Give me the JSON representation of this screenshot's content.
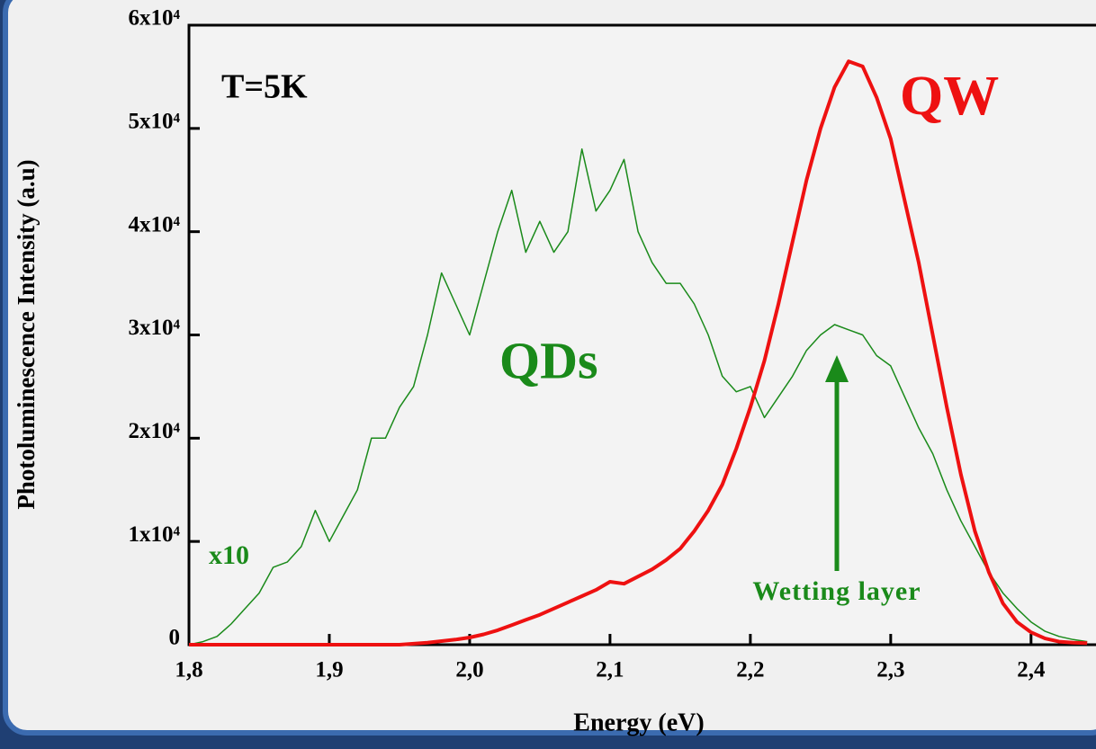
{
  "chart_data": {
    "type": "line",
    "xlabel": "Energy (eV)",
    "ylabel": "Photoluminescence Intensity (a.u)",
    "annotations": [
      "T=5K",
      "QW",
      "QDs",
      "x10",
      "Wetting layer"
    ],
    "x": [
      1.8,
      1.81,
      1.82,
      1.83,
      1.84,
      1.85,
      1.86,
      1.87,
      1.88,
      1.89,
      1.9,
      1.91,
      1.92,
      1.93,
      1.94,
      1.95,
      1.96,
      1.97,
      1.98,
      1.99,
      2.0,
      2.01,
      2.02,
      2.03,
      2.04,
      2.05,
      2.06,
      2.07,
      2.08,
      2.09,
      2.1,
      2.11,
      2.12,
      2.13,
      2.14,
      2.15,
      2.16,
      2.17,
      2.18,
      2.19,
      2.2,
      2.21,
      2.22,
      2.23,
      2.24,
      2.25,
      2.26,
      2.27,
      2.28,
      2.29,
      2.3,
      2.31,
      2.32,
      2.33,
      2.34,
      2.35,
      2.36,
      2.37,
      2.38,
      2.39,
      2.4,
      2.41,
      2.42,
      2.43,
      2.44
    ],
    "series": [
      {
        "name": "QDs",
        "color": "#1a8a1a",
        "width": 1.5,
        "values": [
          0,
          300,
          800,
          2000,
          3500,
          5000,
          7500,
          8000,
          9500,
          13000,
          10000,
          12500,
          15000,
          20000,
          20000,
          23000,
          25000,
          30000,
          36000,
          33000,
          30000,
          35000,
          40000,
          44000,
          38000,
          41000,
          38000,
          40000,
          48000,
          42000,
          44000,
          47000,
          40000,
          37000,
          35000,
          35000,
          33000,
          30000,
          26000,
          24500,
          25000,
          22000,
          24000,
          26000,
          28500,
          30000,
          31000,
          30500,
          30000,
          28000,
          27000,
          24000,
          21000,
          18500,
          15000,
          12000,
          9500,
          7000,
          5000,
          3500,
          2200,
          1300,
          800,
          500,
          300
        ]
      },
      {
        "name": "QW",
        "color": "#ee1111",
        "width": 4,
        "values": [
          0,
          0,
          0,
          0,
          0,
          0,
          0,
          0,
          0,
          0,
          0,
          0,
          0,
          0,
          0,
          0,
          100,
          200,
          350,
          500,
          700,
          1000,
          1400,
          1900,
          2400,
          2900,
          3500,
          4100,
          4700,
          5300,
          6100,
          5900,
          6600,
          7300,
          8200,
          9300,
          11000,
          13000,
          15500,
          19000,
          23000,
          27500,
          33000,
          39000,
          45000,
          50000,
          54000,
          56500,
          56000,
          53000,
          49000,
          43000,
          37000,
          30000,
          23000,
          16500,
          11000,
          7000,
          4000,
          2200,
          1200,
          600,
          300,
          200,
          150
        ]
      }
    ],
    "xlim": [
      1.8,
      2.445
    ],
    "ylim": [
      0,
      60000
    ],
    "xticks": [
      {
        "value": 1.8,
        "label": "1,8"
      },
      {
        "value": 1.9,
        "label": "1,9"
      },
      {
        "value": 2.0,
        "label": "2,0"
      },
      {
        "value": 2.1,
        "label": "2,1"
      },
      {
        "value": 2.2,
        "label": "2,2"
      },
      {
        "value": 2.3,
        "label": "2,3"
      },
      {
        "value": 2.4,
        "label": "2,4"
      }
    ],
    "yticks": [
      0,
      {
        "value": 10000,
        "label": "1x10⁴"
      },
      {
        "value": 20000,
        "label": "2x10⁴"
      },
      {
        "value": 30000,
        "label": "3x10⁴"
      },
      {
        "value": 40000,
        "label": "4x10⁴"
      },
      {
        "value": 50000,
        "label": "5x10⁴"
      },
      {
        "value": 60000,
        "label": "6x10⁴"
      }
    ]
  }
}
